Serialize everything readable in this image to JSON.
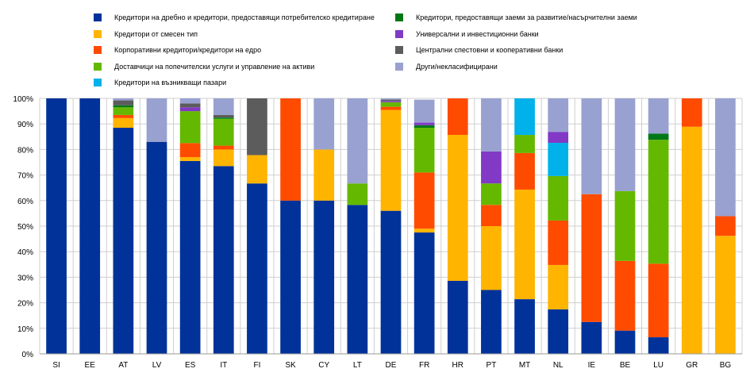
{
  "chart_data": {
    "type": "bar",
    "stacked": true,
    "percent": true,
    "categories": [
      "SI",
      "EE",
      "AT",
      "LV",
      "ES",
      "IT",
      "FI",
      "SK",
      "CY",
      "LT",
      "DE",
      "FR",
      "HR",
      "PT",
      "MT",
      "NL",
      "IE",
      "BE",
      "LU",
      "GR",
      "BG"
    ],
    "ylim": [
      0,
      100
    ],
    "yticks": [
      "0%",
      "10%",
      "20%",
      "30%",
      "40%",
      "50%",
      "60%",
      "70%",
      "80%",
      "90%",
      "100%"
    ],
    "grid": true,
    "legend_position": "top",
    "series": [
      {
        "name": "Кредитори на дребно и кредитори, предоставящи потребителско кредитиране",
        "color": "#003299",
        "values": [
          100,
          100,
          88.5,
          83,
          75.5,
          73.5,
          66.7,
          60,
          60,
          58.3,
          56,
          47.5,
          28.6,
          25,
          21.4,
          17.4,
          12.5,
          9.1,
          6.5,
          0,
          0
        ]
      },
      {
        "name": "Кредитори от смесен тип",
        "color": "#FFB400",
        "values": [
          0,
          0,
          3.8,
          0,
          1.5,
          6.5,
          11.1,
          0,
          20,
          0,
          39.5,
          1.5,
          57.1,
          25,
          42.9,
          17.4,
          0,
          0,
          0,
          88.9,
          46.2
        ]
      },
      {
        "name": "Корпоративни кредитори/кредитори на едро",
        "color": "#FF4B00",
        "values": [
          0,
          0,
          1.2,
          0,
          5.5,
          1.5,
          0,
          40,
          0,
          0,
          1.2,
          22,
          14.3,
          8.3,
          14.3,
          17.4,
          50,
          27.3,
          28.8,
          11.1,
          7.7
        ]
      },
      {
        "name": "Доставчици на попечителски услуги и управление на активи",
        "color": "#65B800",
        "values": [
          0,
          0,
          3,
          0,
          12.5,
          10.5,
          0,
          0,
          0,
          8.4,
          1.8,
          17.5,
          0,
          8.4,
          7.1,
          17.4,
          0,
          27.3,
          48.5,
          0,
          0
        ]
      },
      {
        "name": "Кредитори на възникващи пазари",
        "color": "#00B1EA",
        "values": [
          0,
          0,
          0,
          0,
          0,
          0,
          0,
          0,
          0,
          0,
          0,
          0,
          0,
          0,
          14.3,
          13,
          0,
          0,
          0,
          0,
          0
        ]
      },
      {
        "name": "Кредитори, предоставящи заеми за развитие/насърчителни заеми",
        "color": "#007816",
        "values": [
          0,
          0,
          0.8,
          0,
          0,
          0.5,
          0,
          0,
          0,
          0,
          0,
          1,
          0,
          0,
          0,
          0,
          0,
          0,
          2.4,
          0,
          0
        ]
      },
      {
        "name": "Универсални и инвестиционни банки",
        "color": "#8139C6",
        "values": [
          0,
          0,
          0,
          0,
          1.5,
          0,
          0,
          0,
          0,
          0,
          0.5,
          1,
          0,
          12.5,
          0,
          4.3,
          0,
          0,
          0,
          0,
          0
        ]
      },
      {
        "name": "Централни спестовни и кооперативни банки",
        "color": "#5C5C5C",
        "values": [
          0,
          0,
          1.9,
          0,
          1.5,
          1,
          22.2,
          0,
          0,
          0,
          0.5,
          0,
          0,
          0,
          0,
          0,
          0,
          0,
          0,
          0,
          0
        ]
      },
      {
        "name": "Други/некласифицирани",
        "color": "#98A1D0",
        "values": [
          0,
          0,
          0.8,
          17,
          2,
          6.5,
          0,
          0,
          20,
          33.3,
          0.5,
          9,
          0,
          20.8,
          0,
          13.1,
          37.5,
          36.3,
          13.8,
          0,
          46.1
        ]
      }
    ]
  },
  "legend_layout": [
    [
      0,
      1,
      2,
      3,
      4
    ],
    [
      5,
      6,
      7,
      8
    ]
  ]
}
